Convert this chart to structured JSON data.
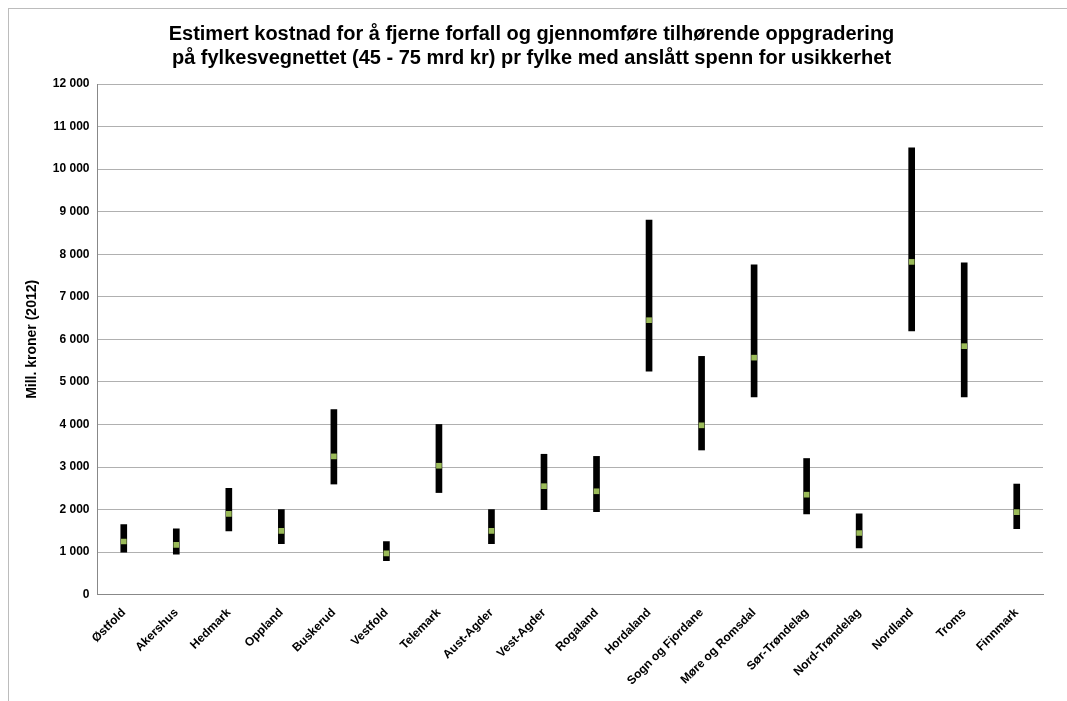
{
  "chart_data": {
    "type": "bar",
    "title": "Estimert kostnad for å fjerne forfall og gjennomføre tilhørende oppgradering\npå fylkesvegnettet (45 - 75 mrd kr) pr fylke med anslått spenn for usikkerhet",
    "ylabel": "Mill. kroner (2012)",
    "categories": [
      "Østfold",
      "Akershus",
      "Hedmark",
      "Oppland",
      "Buskerud",
      "Vestfold",
      "Telemark",
      "Aust-Agder",
      "Vest-Agder",
      "Rogaland",
      "Hordaland",
      "Sogn og Fjordane",
      "Møre og Romsdal",
      "Sør-Trøndelag",
      "Nord-Trøndelag",
      "Nordland",
      "Troms",
      "Finnmark"
    ],
    "series": [
      {
        "color": "#000000",
        "base": [
          1000,
          950,
          1500,
          1200,
          2600,
          800,
          2400,
          1200,
          2000,
          1950,
          5250,
          3400,
          4650,
          1900,
          1100,
          6200,
          4650,
          1550
        ],
        "values": [
          650,
          600,
          1000,
          800,
          1750,
          450,
          1600,
          800,
          1300,
          1300,
          3550,
          2200,
          3100,
          1300,
          800,
          4300,
          3150,
          1050
        ]
      },
      {
        "type": "scatter",
        "color": "#9bbb59",
        "marker": "square",
        "x": [
          "Østfold",
          "Akershus",
          "Hedmark",
          "Oppland",
          "Buskerud",
          "Vestfold",
          "Telemark",
          "Aust-Agder",
          "Vest-Agder",
          "Rogaland",
          "Hordaland",
          "Sogn og Fjordane",
          "Møre og Romsdal",
          "Sør-Trøndelag",
          "Nord-Trøndelag",
          "Nordland",
          "Troms",
          "Finnmark"
        ],
        "values": [
          1250,
          1170,
          1900,
          1500,
          3250,
          970,
          3030,
          1500,
          2550,
          2430,
          6450,
          3980,
          5570,
          2350,
          1450,
          7820,
          5840,
          1940
        ]
      }
    ],
    "ylim": [
      0,
      12000
    ],
    "yticks": [
      0,
      {
        "value": 1000,
        "label": "1 000"
      },
      {
        "value": 2000,
        "label": "2 000"
      },
      {
        "value": 3000,
        "label": "3 000"
      },
      {
        "value": 4000,
        "label": "4 000"
      },
      {
        "value": 5000,
        "label": "5 000"
      },
      {
        "value": 6000,
        "label": "6 000"
      },
      {
        "value": 7000,
        "label": "7 000"
      },
      {
        "value": 8000,
        "label": "8 000"
      },
      {
        "value": 9000,
        "label": "9 000"
      },
      {
        "value": 10000,
        "label": "10 000"
      },
      {
        "value": 11000,
        "label": "11 000"
      },
      {
        "value": 12000,
        "label": "12 000"
      }
    ],
    "grid": "y",
    "legend": false
  }
}
